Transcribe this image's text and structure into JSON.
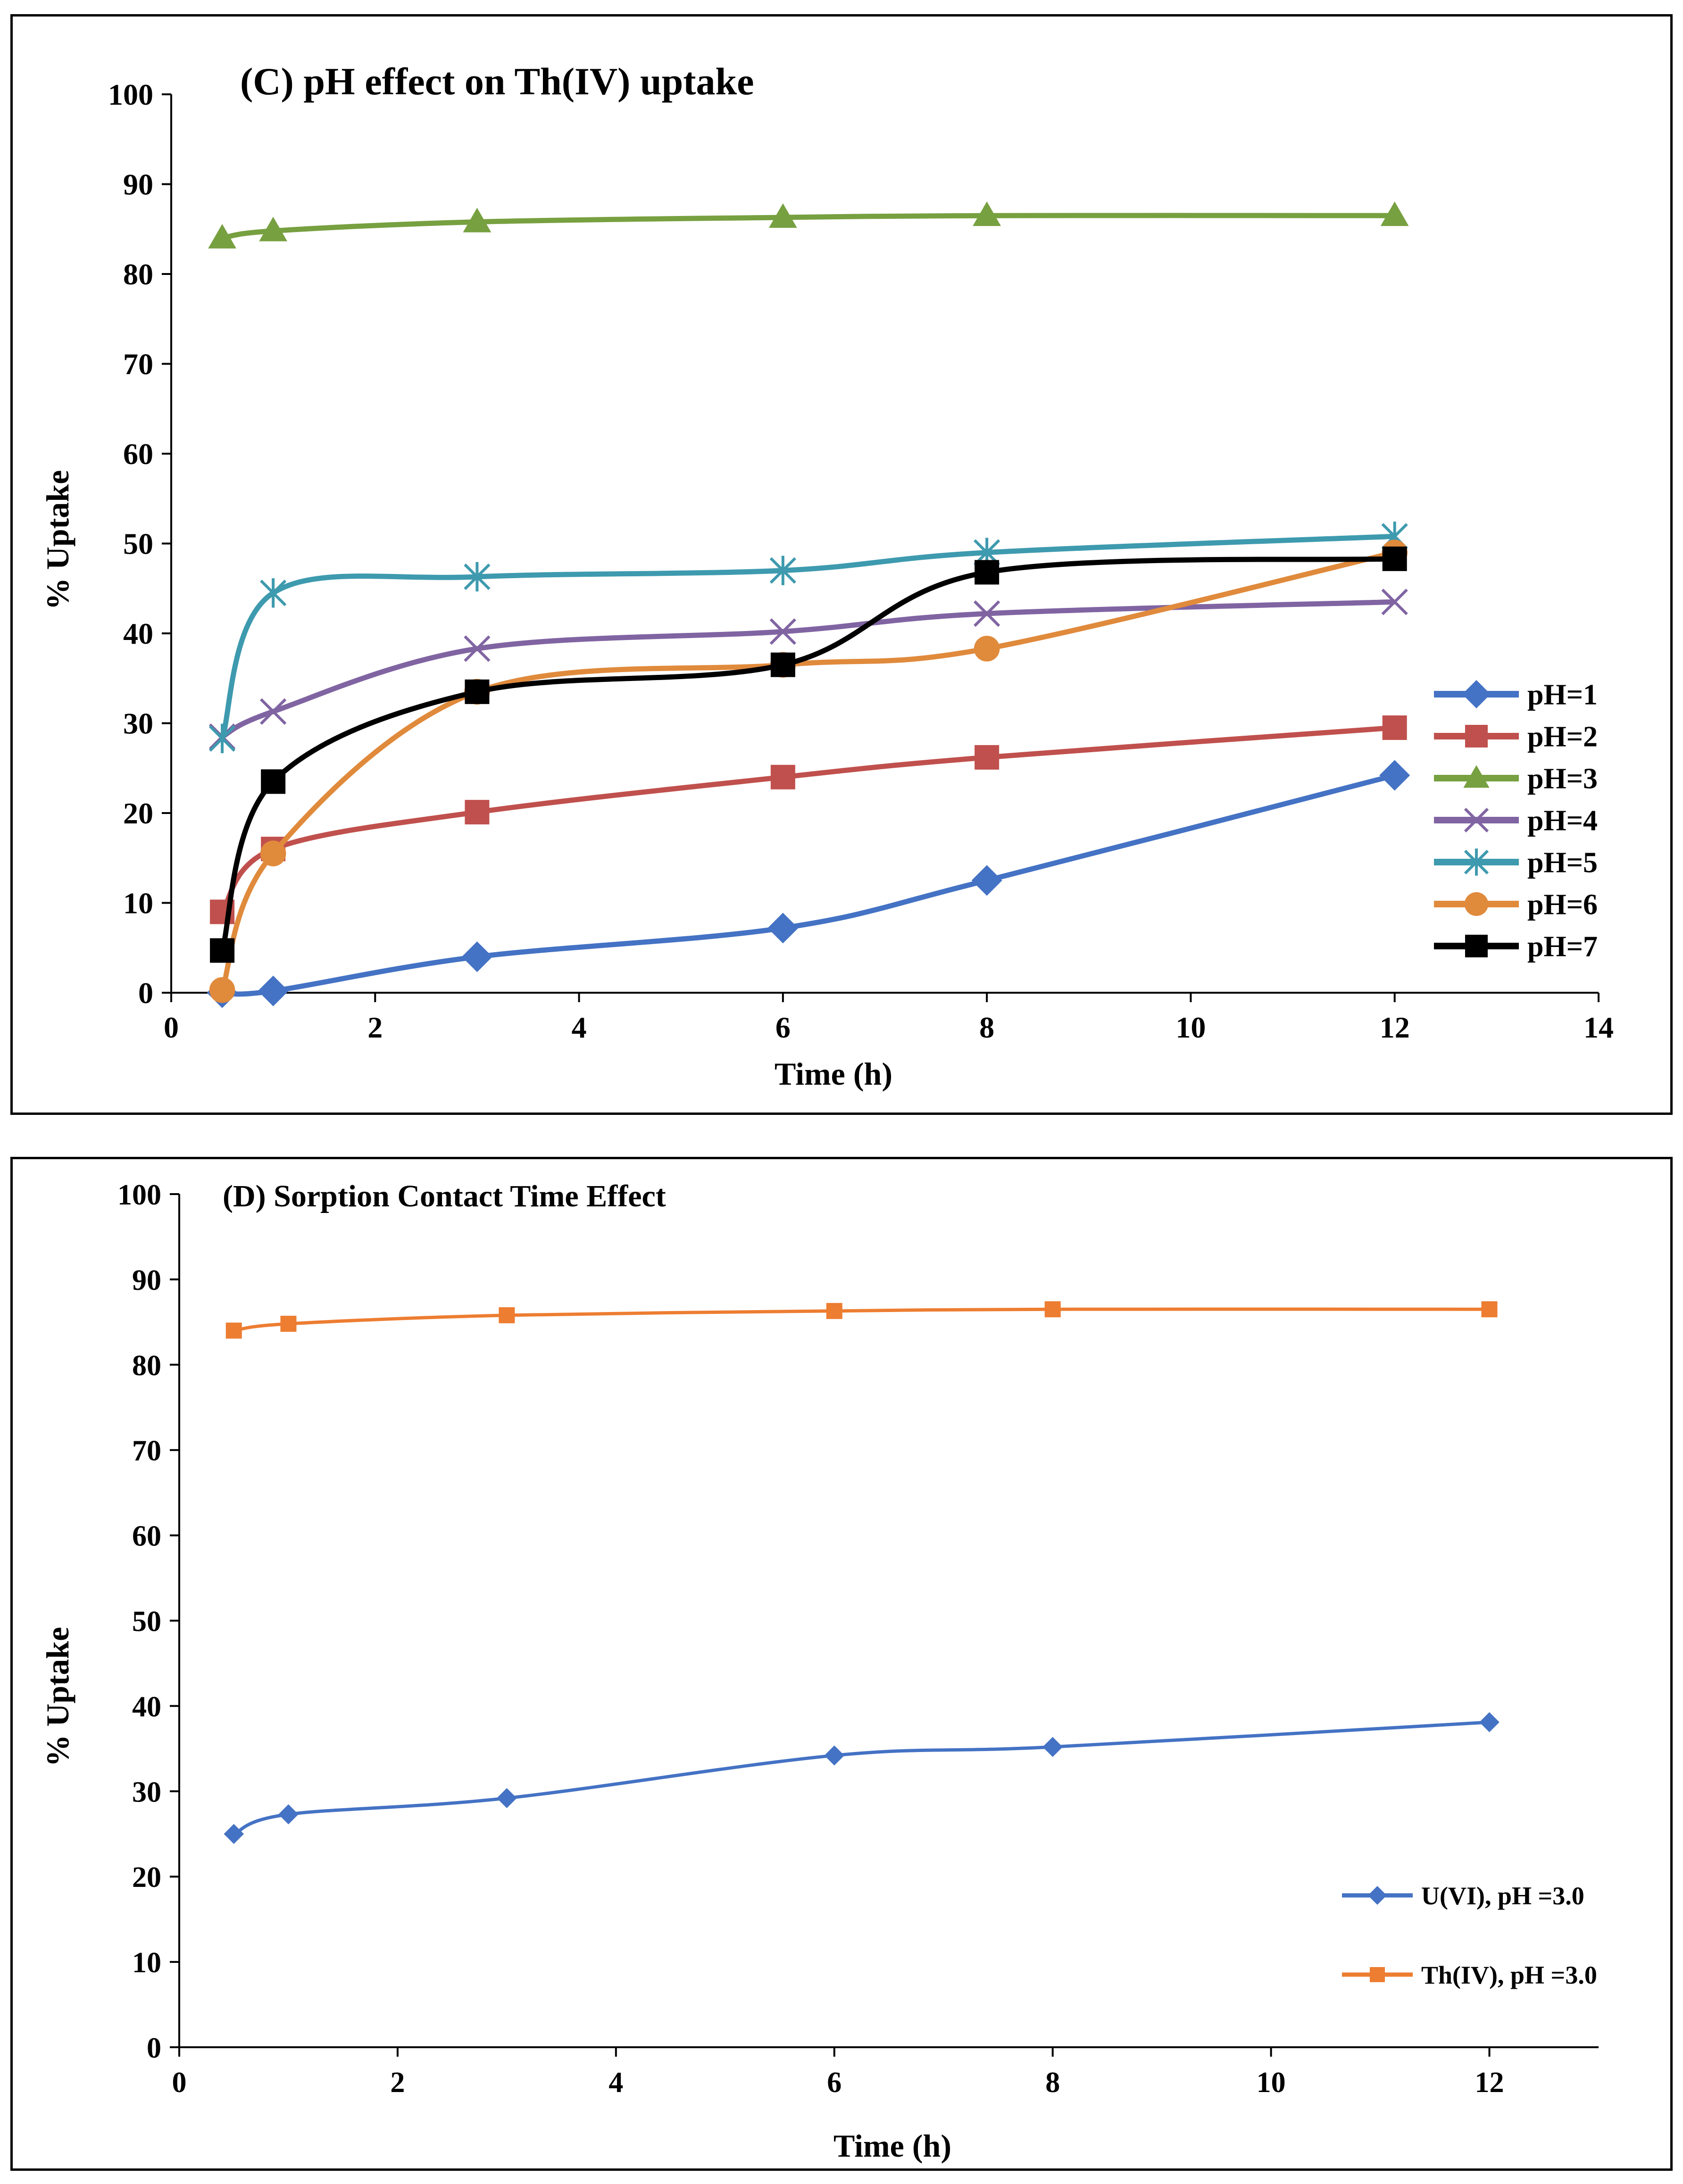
{
  "chart_data": [
    {
      "type": "line",
      "title": "(C) pH effect on Th(IV) uptake",
      "xlabel": "Time (h)",
      "ylabel": "% Uptake",
      "xlim": [
        0,
        14
      ],
      "ylim": [
        0,
        100
      ],
      "x_ticks": [
        0,
        2,
        4,
        6,
        8,
        10,
        12,
        14
      ],
      "y_ticks": [
        0,
        10,
        20,
        30,
        40,
        50,
        60,
        70,
        80,
        90,
        100
      ],
      "grid": false,
      "legend_position": "right",
      "x": [
        0.5,
        1,
        3,
        6,
        8,
        12
      ],
      "series": [
        {
          "name": "pH=1",
          "color": "#4472C4",
          "marker": "diamond",
          "values": [
            0,
            0.2,
            4,
            7.2,
            12.5,
            24.2
          ]
        },
        {
          "name": "pH=2",
          "color": "#C0504D",
          "marker": "square",
          "values": [
            9,
            16,
            20.1,
            24,
            26.2,
            29.5
          ]
        },
        {
          "name": "pH=3",
          "color": "#77A040",
          "marker": "triangle",
          "values": [
            84,
            84.8,
            85.8,
            86.3,
            86.5,
            86.5
          ]
        },
        {
          "name": "pH=4",
          "color": "#8064A2",
          "marker": "x",
          "values": [
            28.5,
            31.3,
            38.3,
            40.2,
            42.2,
            43.5
          ]
        },
        {
          "name": "pH=5",
          "color": "#3E9AAE",
          "marker": "asterisk",
          "values": [
            28.3,
            44.5,
            46.3,
            47,
            49,
            50.8
          ]
        },
        {
          "name": "pH=6",
          "color": "#E08A3C",
          "marker": "circle",
          "values": [
            0.3,
            15.5,
            33.5,
            36.5,
            38.3,
            49
          ]
        },
        {
          "name": "pH=7",
          "color": "#000000",
          "marker": "square",
          "values": [
            4.7,
            23.5,
            33.5,
            36.5,
            46.8,
            48.3
          ]
        }
      ]
    },
    {
      "type": "line",
      "title": "(D) Sorption Contact Time Effect",
      "xlabel": "Time (h)",
      "ylabel": "% Uptake",
      "xlim": [
        0,
        13
      ],
      "ylim": [
        0,
        100
      ],
      "x_ticks": [
        0,
        2,
        4,
        6,
        8,
        10,
        12
      ],
      "y_ticks": [
        0,
        10,
        20,
        30,
        40,
        50,
        60,
        70,
        80,
        90,
        100
      ],
      "grid": false,
      "legend_position": "bottom-right",
      "x": [
        0.5,
        1,
        3,
        6,
        8,
        12
      ],
      "series": [
        {
          "name": "U(VI), pH =3.0",
          "color": "#4472C4",
          "marker": "diamond",
          "values": [
            25,
            27.3,
            29.2,
            34.2,
            35.2,
            38.1
          ]
        },
        {
          "name": "Th(IV), pH =3.0",
          "color": "#ED7D31",
          "marker": "square",
          "values": [
            84,
            84.8,
            85.8,
            86.3,
            86.5,
            86.5
          ]
        }
      ]
    }
  ]
}
